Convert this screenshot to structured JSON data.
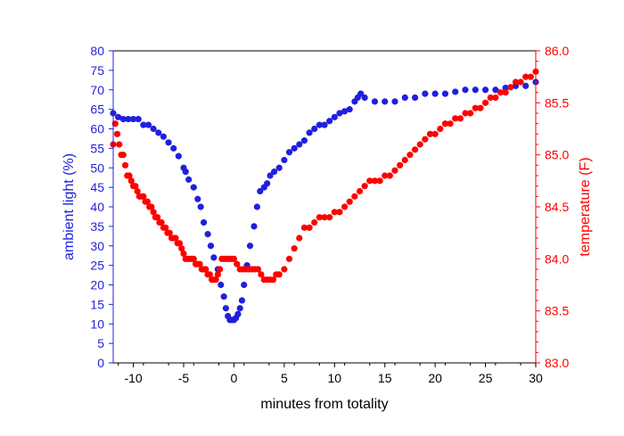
{
  "chart_data": {
    "type": "scatter",
    "xlabel": "minutes from totality",
    "ylabel_left": "ambient light (%)",
    "ylabel_right": "temperature (F)",
    "xlim": [
      -12,
      30
    ],
    "ylim_left": [
      0,
      80
    ],
    "ylim_right": [
      83.0,
      86.0
    ],
    "grid": false,
    "legend": "none",
    "colors": {
      "light": "#1f1fe0",
      "temp": "#ff0000",
      "axis": "#000000"
    },
    "x_ticks": [
      -10,
      -5,
      0,
      5,
      10,
      15,
      20,
      25,
      30
    ],
    "y_left_ticks": [
      0,
      5,
      10,
      15,
      20,
      25,
      30,
      35,
      40,
      45,
      50,
      55,
      60,
      65,
      70,
      75,
      80
    ],
    "y_right_ticks": [
      "83.0",
      "83.5",
      "84.0",
      "84.5",
      "85.0",
      "85.5",
      "86.0"
    ],
    "series": [
      {
        "axis": "left",
        "x": [
          -12,
          -11.5,
          -11,
          -10.5,
          -10,
          -9.5,
          -9,
          -8.5,
          -8,
          -7.5,
          -7,
          -6.5,
          -6,
          -5.5,
          -5,
          -4.8,
          -4.5,
          -4,
          -3.6,
          -3.3,
          -3,
          -2.6,
          -2.3,
          -2,
          -1.6,
          -1.3,
          -1,
          -0.8,
          -0.6,
          -0.4,
          -0.2,
          0,
          0.2,
          0.4,
          0.6,
          0.8,
          1,
          1.3,
          1.6,
          2,
          2.3,
          2.6,
          3,
          3.3,
          3.6,
          4,
          4.5,
          5,
          5.5,
          6,
          6.5,
          7,
          7.5,
          8,
          8.5,
          9,
          9.5,
          10,
          10.5,
          11,
          11.5,
          12,
          12.3,
          12.6,
          13,
          14,
          15,
          16,
          17,
          18,
          19,
          20,
          21,
          22,
          23,
          24,
          25,
          26,
          27,
          28,
          29,
          30
        ],
        "values": [
          64,
          63,
          62.5,
          62.5,
          62.5,
          62.5,
          61,
          61,
          60,
          59,
          58,
          56.5,
          55,
          53,
          50,
          49,
          47,
          45,
          42,
          40,
          36,
          33,
          30,
          27,
          24,
          20,
          17,
          14,
          12,
          11,
          11,
          11,
          11.5,
          12.5,
          14,
          16,
          20,
          25,
          30,
          35,
          40,
          44,
          45,
          46,
          48,
          49,
          50,
          52,
          54,
          55,
          56,
          57,
          59,
          60,
          61,
          61,
          62,
          63,
          64,
          64.5,
          65,
          67,
          68,
          69,
          68,
          67,
          67,
          67,
          68,
          68,
          69,
          69,
          69,
          69.5,
          70,
          70,
          70,
          70,
          70.5,
          71,
          71,
          72
        ]
      },
      {
        "axis": "right",
        "x": [
          -12,
          -11.8,
          -11.6,
          -11.4,
          -11.2,
          -11,
          -10.8,
          -10.6,
          -10.4,
          -10.2,
          -10,
          -9.8,
          -9.6,
          -9.4,
          -9.2,
          -9,
          -8.8,
          -8.6,
          -8.4,
          -8.2,
          -8,
          -7.8,
          -7.6,
          -7.4,
          -7.2,
          -7,
          -6.8,
          -6.6,
          -6.4,
          -6.2,
          -6,
          -5.8,
          -5.6,
          -5.4,
          -5.2,
          -5,
          -4.8,
          -4.6,
          -4.4,
          -4.2,
          -4,
          -3.8,
          -3.6,
          -3.4,
          -3.2,
          -3,
          -2.8,
          -2.6,
          -2.4,
          -2.2,
          -2,
          -1.8,
          -1.6,
          -1.4,
          -1.2,
          -1,
          -0.8,
          -0.6,
          -0.4,
          -0.2,
          0,
          0.3,
          0.6,
          0.9,
          1.2,
          1.5,
          1.8,
          2.1,
          2.4,
          2.7,
          3,
          3.3,
          3.6,
          3.9,
          4.2,
          4.5,
          5,
          5.5,
          6,
          6.5,
          7,
          7.5,
          8,
          8.5,
          9,
          9.5,
          10,
          10.5,
          11,
          11.5,
          12,
          12.5,
          13,
          13.5,
          14,
          14.5,
          15,
          15.5,
          16,
          16.5,
          17,
          17.5,
          18,
          18.5,
          19,
          19.5,
          20,
          20.5,
          21,
          21.5,
          22,
          22.5,
          23,
          23.5,
          24,
          24.5,
          25,
          25.5,
          26,
          26.5,
          27,
          27.5,
          28,
          28.5,
          29,
          29.5,
          30
        ],
        "values": [
          85.1,
          85.3,
          85.2,
          85.1,
          85,
          85,
          84.9,
          84.8,
          84.8,
          84.75,
          84.7,
          84.7,
          84.65,
          84.6,
          84.6,
          84.6,
          84.55,
          84.55,
          84.5,
          84.5,
          84.45,
          84.4,
          84.4,
          84.35,
          84.35,
          84.3,
          84.3,
          84.25,
          84.25,
          84.2,
          84.2,
          84.2,
          84.15,
          84.15,
          84.1,
          84.05,
          84,
          84,
          84,
          84,
          84,
          83.95,
          83.95,
          83.95,
          83.9,
          83.9,
          83.9,
          83.85,
          83.85,
          83.8,
          83.8,
          83.8,
          83.85,
          83.9,
          84,
          84,
          84,
          84,
          84,
          84,
          84,
          83.95,
          83.9,
          83.9,
          83.9,
          83.9,
          83.9,
          83.9,
          83.9,
          83.85,
          83.8,
          83.8,
          83.8,
          83.8,
          83.85,
          83.85,
          83.9,
          84,
          84.1,
          84.2,
          84.3,
          84.3,
          84.35,
          84.4,
          84.4,
          84.4,
          84.45,
          84.45,
          84.5,
          84.55,
          84.6,
          84.65,
          84.7,
          84.75,
          84.75,
          84.75,
          84.8,
          84.8,
          84.85,
          84.9,
          84.95,
          85,
          85.05,
          85.1,
          85.15,
          85.2,
          85.2,
          85.25,
          85.3,
          85.3,
          85.35,
          85.35,
          85.4,
          85.4,
          85.45,
          85.45,
          85.5,
          85.55,
          85.55,
          85.6,
          85.6,
          85.65,
          85.7,
          85.7,
          85.75,
          85.75,
          85.8
        ]
      }
    ]
  }
}
